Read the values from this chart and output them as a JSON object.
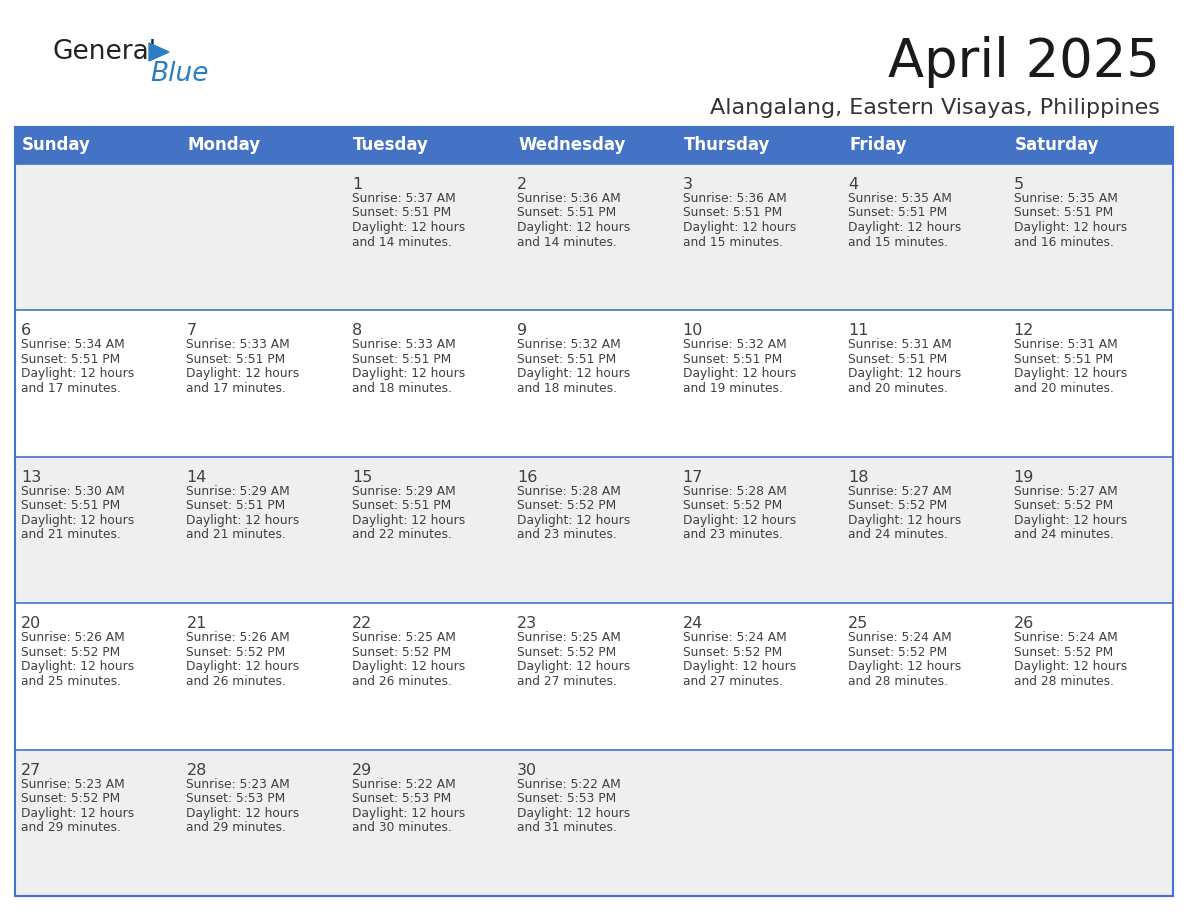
{
  "title": "April 2025",
  "subtitle": "Alangalang, Eastern Visayas, Philippines",
  "header_bg": "#4472C4",
  "header_text_color": "#FFFFFF",
  "cell_bg_odd": "#EFEFEF",
  "cell_bg_even": "#FFFFFF",
  "border_color": "#4472C4",
  "text_color": "#404040",
  "days_of_week": [
    "Sunday",
    "Monday",
    "Tuesday",
    "Wednesday",
    "Thursday",
    "Friday",
    "Saturday"
  ],
  "weeks": [
    [
      {
        "day": "",
        "sunrise": "",
        "sunset": "",
        "daylight": ""
      },
      {
        "day": "",
        "sunrise": "",
        "sunset": "",
        "daylight": ""
      },
      {
        "day": "1",
        "sunrise": "Sunrise: 5:37 AM",
        "sunset": "Sunset: 5:51 PM",
        "daylight": "Daylight: 12 hours\nand 14 minutes."
      },
      {
        "day": "2",
        "sunrise": "Sunrise: 5:36 AM",
        "sunset": "Sunset: 5:51 PM",
        "daylight": "Daylight: 12 hours\nand 14 minutes."
      },
      {
        "day": "3",
        "sunrise": "Sunrise: 5:36 AM",
        "sunset": "Sunset: 5:51 PM",
        "daylight": "Daylight: 12 hours\nand 15 minutes."
      },
      {
        "day": "4",
        "sunrise": "Sunrise: 5:35 AM",
        "sunset": "Sunset: 5:51 PM",
        "daylight": "Daylight: 12 hours\nand 15 minutes."
      },
      {
        "day": "5",
        "sunrise": "Sunrise: 5:35 AM",
        "sunset": "Sunset: 5:51 PM",
        "daylight": "Daylight: 12 hours\nand 16 minutes."
      }
    ],
    [
      {
        "day": "6",
        "sunrise": "Sunrise: 5:34 AM",
        "sunset": "Sunset: 5:51 PM",
        "daylight": "Daylight: 12 hours\nand 17 minutes."
      },
      {
        "day": "7",
        "sunrise": "Sunrise: 5:33 AM",
        "sunset": "Sunset: 5:51 PM",
        "daylight": "Daylight: 12 hours\nand 17 minutes."
      },
      {
        "day": "8",
        "sunrise": "Sunrise: 5:33 AM",
        "sunset": "Sunset: 5:51 PM",
        "daylight": "Daylight: 12 hours\nand 18 minutes."
      },
      {
        "day": "9",
        "sunrise": "Sunrise: 5:32 AM",
        "sunset": "Sunset: 5:51 PM",
        "daylight": "Daylight: 12 hours\nand 18 minutes."
      },
      {
        "day": "10",
        "sunrise": "Sunrise: 5:32 AM",
        "sunset": "Sunset: 5:51 PM",
        "daylight": "Daylight: 12 hours\nand 19 minutes."
      },
      {
        "day": "11",
        "sunrise": "Sunrise: 5:31 AM",
        "sunset": "Sunset: 5:51 PM",
        "daylight": "Daylight: 12 hours\nand 20 minutes."
      },
      {
        "day": "12",
        "sunrise": "Sunrise: 5:31 AM",
        "sunset": "Sunset: 5:51 PM",
        "daylight": "Daylight: 12 hours\nand 20 minutes."
      }
    ],
    [
      {
        "day": "13",
        "sunrise": "Sunrise: 5:30 AM",
        "sunset": "Sunset: 5:51 PM",
        "daylight": "Daylight: 12 hours\nand 21 minutes."
      },
      {
        "day": "14",
        "sunrise": "Sunrise: 5:29 AM",
        "sunset": "Sunset: 5:51 PM",
        "daylight": "Daylight: 12 hours\nand 21 minutes."
      },
      {
        "day": "15",
        "sunrise": "Sunrise: 5:29 AM",
        "sunset": "Sunset: 5:51 PM",
        "daylight": "Daylight: 12 hours\nand 22 minutes."
      },
      {
        "day": "16",
        "sunrise": "Sunrise: 5:28 AM",
        "sunset": "Sunset: 5:52 PM",
        "daylight": "Daylight: 12 hours\nand 23 minutes."
      },
      {
        "day": "17",
        "sunrise": "Sunrise: 5:28 AM",
        "sunset": "Sunset: 5:52 PM",
        "daylight": "Daylight: 12 hours\nand 23 minutes."
      },
      {
        "day": "18",
        "sunrise": "Sunrise: 5:27 AM",
        "sunset": "Sunset: 5:52 PM",
        "daylight": "Daylight: 12 hours\nand 24 minutes."
      },
      {
        "day": "19",
        "sunrise": "Sunrise: 5:27 AM",
        "sunset": "Sunset: 5:52 PM",
        "daylight": "Daylight: 12 hours\nand 24 minutes."
      }
    ],
    [
      {
        "day": "20",
        "sunrise": "Sunrise: 5:26 AM",
        "sunset": "Sunset: 5:52 PM",
        "daylight": "Daylight: 12 hours\nand 25 minutes."
      },
      {
        "day": "21",
        "sunrise": "Sunrise: 5:26 AM",
        "sunset": "Sunset: 5:52 PM",
        "daylight": "Daylight: 12 hours\nand 26 minutes."
      },
      {
        "day": "22",
        "sunrise": "Sunrise: 5:25 AM",
        "sunset": "Sunset: 5:52 PM",
        "daylight": "Daylight: 12 hours\nand 26 minutes."
      },
      {
        "day": "23",
        "sunrise": "Sunrise: 5:25 AM",
        "sunset": "Sunset: 5:52 PM",
        "daylight": "Daylight: 12 hours\nand 27 minutes."
      },
      {
        "day": "24",
        "sunrise": "Sunrise: 5:24 AM",
        "sunset": "Sunset: 5:52 PM",
        "daylight": "Daylight: 12 hours\nand 27 minutes."
      },
      {
        "day": "25",
        "sunrise": "Sunrise: 5:24 AM",
        "sunset": "Sunset: 5:52 PM",
        "daylight": "Daylight: 12 hours\nand 28 minutes."
      },
      {
        "day": "26",
        "sunrise": "Sunrise: 5:24 AM",
        "sunset": "Sunset: 5:52 PM",
        "daylight": "Daylight: 12 hours\nand 28 minutes."
      }
    ],
    [
      {
        "day": "27",
        "sunrise": "Sunrise: 5:23 AM",
        "sunset": "Sunset: 5:52 PM",
        "daylight": "Daylight: 12 hours\nand 29 minutes."
      },
      {
        "day": "28",
        "sunrise": "Sunrise: 5:23 AM",
        "sunset": "Sunset: 5:53 PM",
        "daylight": "Daylight: 12 hours\nand 29 minutes."
      },
      {
        "day": "29",
        "sunrise": "Sunrise: 5:22 AM",
        "sunset": "Sunset: 5:53 PM",
        "daylight": "Daylight: 12 hours\nand 30 minutes."
      },
      {
        "day": "30",
        "sunrise": "Sunrise: 5:22 AM",
        "sunset": "Sunset: 5:53 PM",
        "daylight": "Daylight: 12 hours\nand 31 minutes."
      },
      {
        "day": "",
        "sunrise": "",
        "sunset": "",
        "daylight": ""
      },
      {
        "day": "",
        "sunrise": "",
        "sunset": "",
        "daylight": ""
      },
      {
        "day": "",
        "sunrise": "",
        "sunset": "",
        "daylight": ""
      }
    ]
  ],
  "logo_color_general": "#222222",
  "logo_color_blue": "#2B7EC1",
  "logo_triangle_color": "#2B7EC1",
  "fig_width": 11.88,
  "fig_height": 9.18,
  "dpi": 100
}
